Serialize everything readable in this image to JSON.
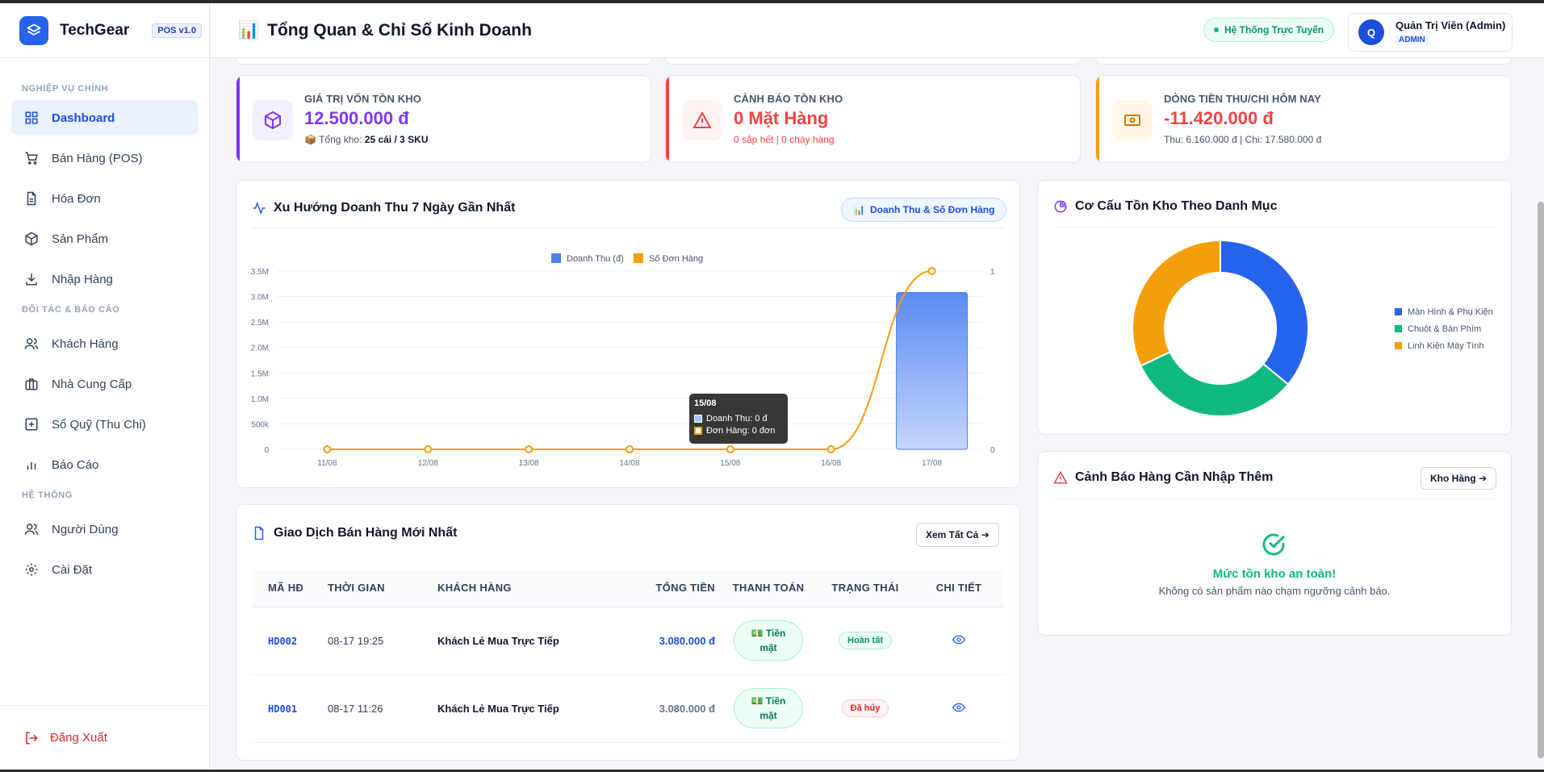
{
  "brand": {
    "name": "TechGear",
    "badge": "POS v1.0"
  },
  "sidebar": {
    "sections": [
      {
        "title": "NGHIỆP VỤ CHÍNH"
      },
      {
        "title": "ĐỐI TÁC & BÁO CÁO"
      },
      {
        "title": "HỆ THỐNG"
      }
    ],
    "items": [
      {
        "label": "Dashboard",
        "icon": "grid-icon"
      },
      {
        "label": "Bán Hàng (POS)",
        "icon": "cart-icon"
      },
      {
        "label": "Hóa Đơn",
        "icon": "document-icon"
      },
      {
        "label": "Sản Phẩm",
        "icon": "box-icon"
      },
      {
        "label": "Nhập Hàng",
        "icon": "download-icon"
      },
      {
        "label": "Khách Hàng",
        "icon": "users-icon"
      },
      {
        "label": "Nhà Cung Cấp",
        "icon": "briefcase-icon"
      },
      {
        "label": "Sổ Quỹ (Thu Chi)",
        "icon": "plus-square-icon"
      },
      {
        "label": "Báo Cáo",
        "icon": "bar-chart-icon"
      },
      {
        "label": "Người Dùng",
        "icon": "users-icon"
      },
      {
        "label": "Cài Đặt",
        "icon": "gear-icon"
      }
    ],
    "logout": "Đăng Xuất"
  },
  "header": {
    "icon": "📊",
    "title": "Tổng Quan & Chỉ Số Kinh Doanh",
    "status": "Hệ Thống Trực Tuyến",
    "user": {
      "initial": "Q",
      "name": "Quản Trị Viên (Admin)",
      "role": "ADMIN"
    }
  },
  "stats": [
    {
      "label": "GIÁ TRỊ VỐN TỒN KHO",
      "value": "12.500.000 đ",
      "sub_prefix": "📦 Tổng kho:",
      "sub_bold": "25 cái / 3 SKU",
      "color": "#7c3aed",
      "bg": "#f3efff",
      "icon": "box-icon"
    },
    {
      "label": "CẢNH BÁO TỒN KHO",
      "value": "0 Mặt Hàng",
      "sub": "0 sắp hết | 0 cháy hàng",
      "color": "#ef4444",
      "bg": "#fef2f2",
      "icon": "warning-icon"
    },
    {
      "label": "DÒNG TIỀN THU/CHI HÔM NAY",
      "value": "-11.420.000 đ",
      "sub": "Thu: 6.160.000 đ | Chi: 17.580.000 đ",
      "color": "#f59e0b",
      "bg": "#fff8e6",
      "icon": "cash-icon"
    }
  ],
  "revenue_card": {
    "title": "Xu Hướng Doanh Thu 7 Ngày Gần Nhất",
    "toggle_icon": "📊",
    "toggle_label": "Doanh Thu & Số Đơn Hàng",
    "tooltip": {
      "title": "15/08",
      "line1": "Doanh Thu: 0 đ",
      "line2": "Đơn Hàng: 0 đơn"
    }
  },
  "chart_data": [
    {
      "type": "bar",
      "categories": [
        "11/08",
        "12/08",
        "13/08",
        "14/08",
        "15/08",
        "16/08",
        "17/08"
      ],
      "series": [
        {
          "name": "Doanh Thu (đ)",
          "type": "bar",
          "axis": "left",
          "color": "#4f7ff0",
          "values": [
            0,
            0,
            0,
            0,
            0,
            0,
            3080000
          ]
        },
        {
          "name": "Số Đơn Hàng",
          "type": "line",
          "axis": "right",
          "color": "#f59e0b",
          "values": [
            0,
            0,
            0,
            0,
            0,
            0,
            1
          ]
        }
      ],
      "y_ticks": [
        "0",
        "500k",
        "1.0M",
        "1.5M",
        "2.0M",
        "2.5M",
        "3.0M",
        "3.5M"
      ],
      "ylim": [
        0,
        3500000
      ],
      "y2_ticks": [
        "0",
        "1"
      ],
      "y2lim": [
        0,
        1
      ],
      "legend_position": "top-center",
      "grid": true
    },
    {
      "type": "pie",
      "title": "Cơ Cấu Tồn Kho Theo Danh Mục",
      "labels": [
        "Màn Hình & Phụ Kiện",
        "Chuột & Bàn Phím",
        "Linh Kiện Máy Tính"
      ],
      "values": [
        36,
        32,
        32
      ],
      "colors": [
        "#2563eb",
        "#10b981",
        "#f59e0b"
      ],
      "legend_position": "right"
    }
  ],
  "transactions": {
    "title": "Giao Dịch Bán Hàng Mới Nhất",
    "view_all": "Xem Tất Cả ➔",
    "columns": [
      "MÃ HĐ",
      "THỜI GIAN",
      "KHÁCH HÀNG",
      "TỔNG TIỀN",
      "THANH TOÁN",
      "TRẠNG THÁI",
      "CHI TIẾT"
    ],
    "rows": [
      {
        "code": "HD002",
        "time": "08-17 19:25",
        "customer": "Khách Lẻ Mua Trực Tiếp",
        "total": "3.080.000 đ",
        "pay1": "💵 Tiền",
        "pay2": "mặt",
        "status": "Hoàn tất"
      },
      {
        "code": "HD001",
        "time": "08-17 11:26",
        "customer": "Khách Lẻ Mua Trực Tiếp",
        "total": "3.080.000 đ",
        "pay1": "💵 Tiền",
        "pay2": "mặt",
        "status": "Đã hủy"
      }
    ]
  },
  "restock": {
    "title": "Cảnh Báo Hàng Cần Nhập Thêm",
    "button": "Kho Hàng ➔",
    "ok_title": "Mức tồn kho an toàn!",
    "ok_text": "Không có sản phẩm nào chạm ngưỡng cảnh báo."
  }
}
